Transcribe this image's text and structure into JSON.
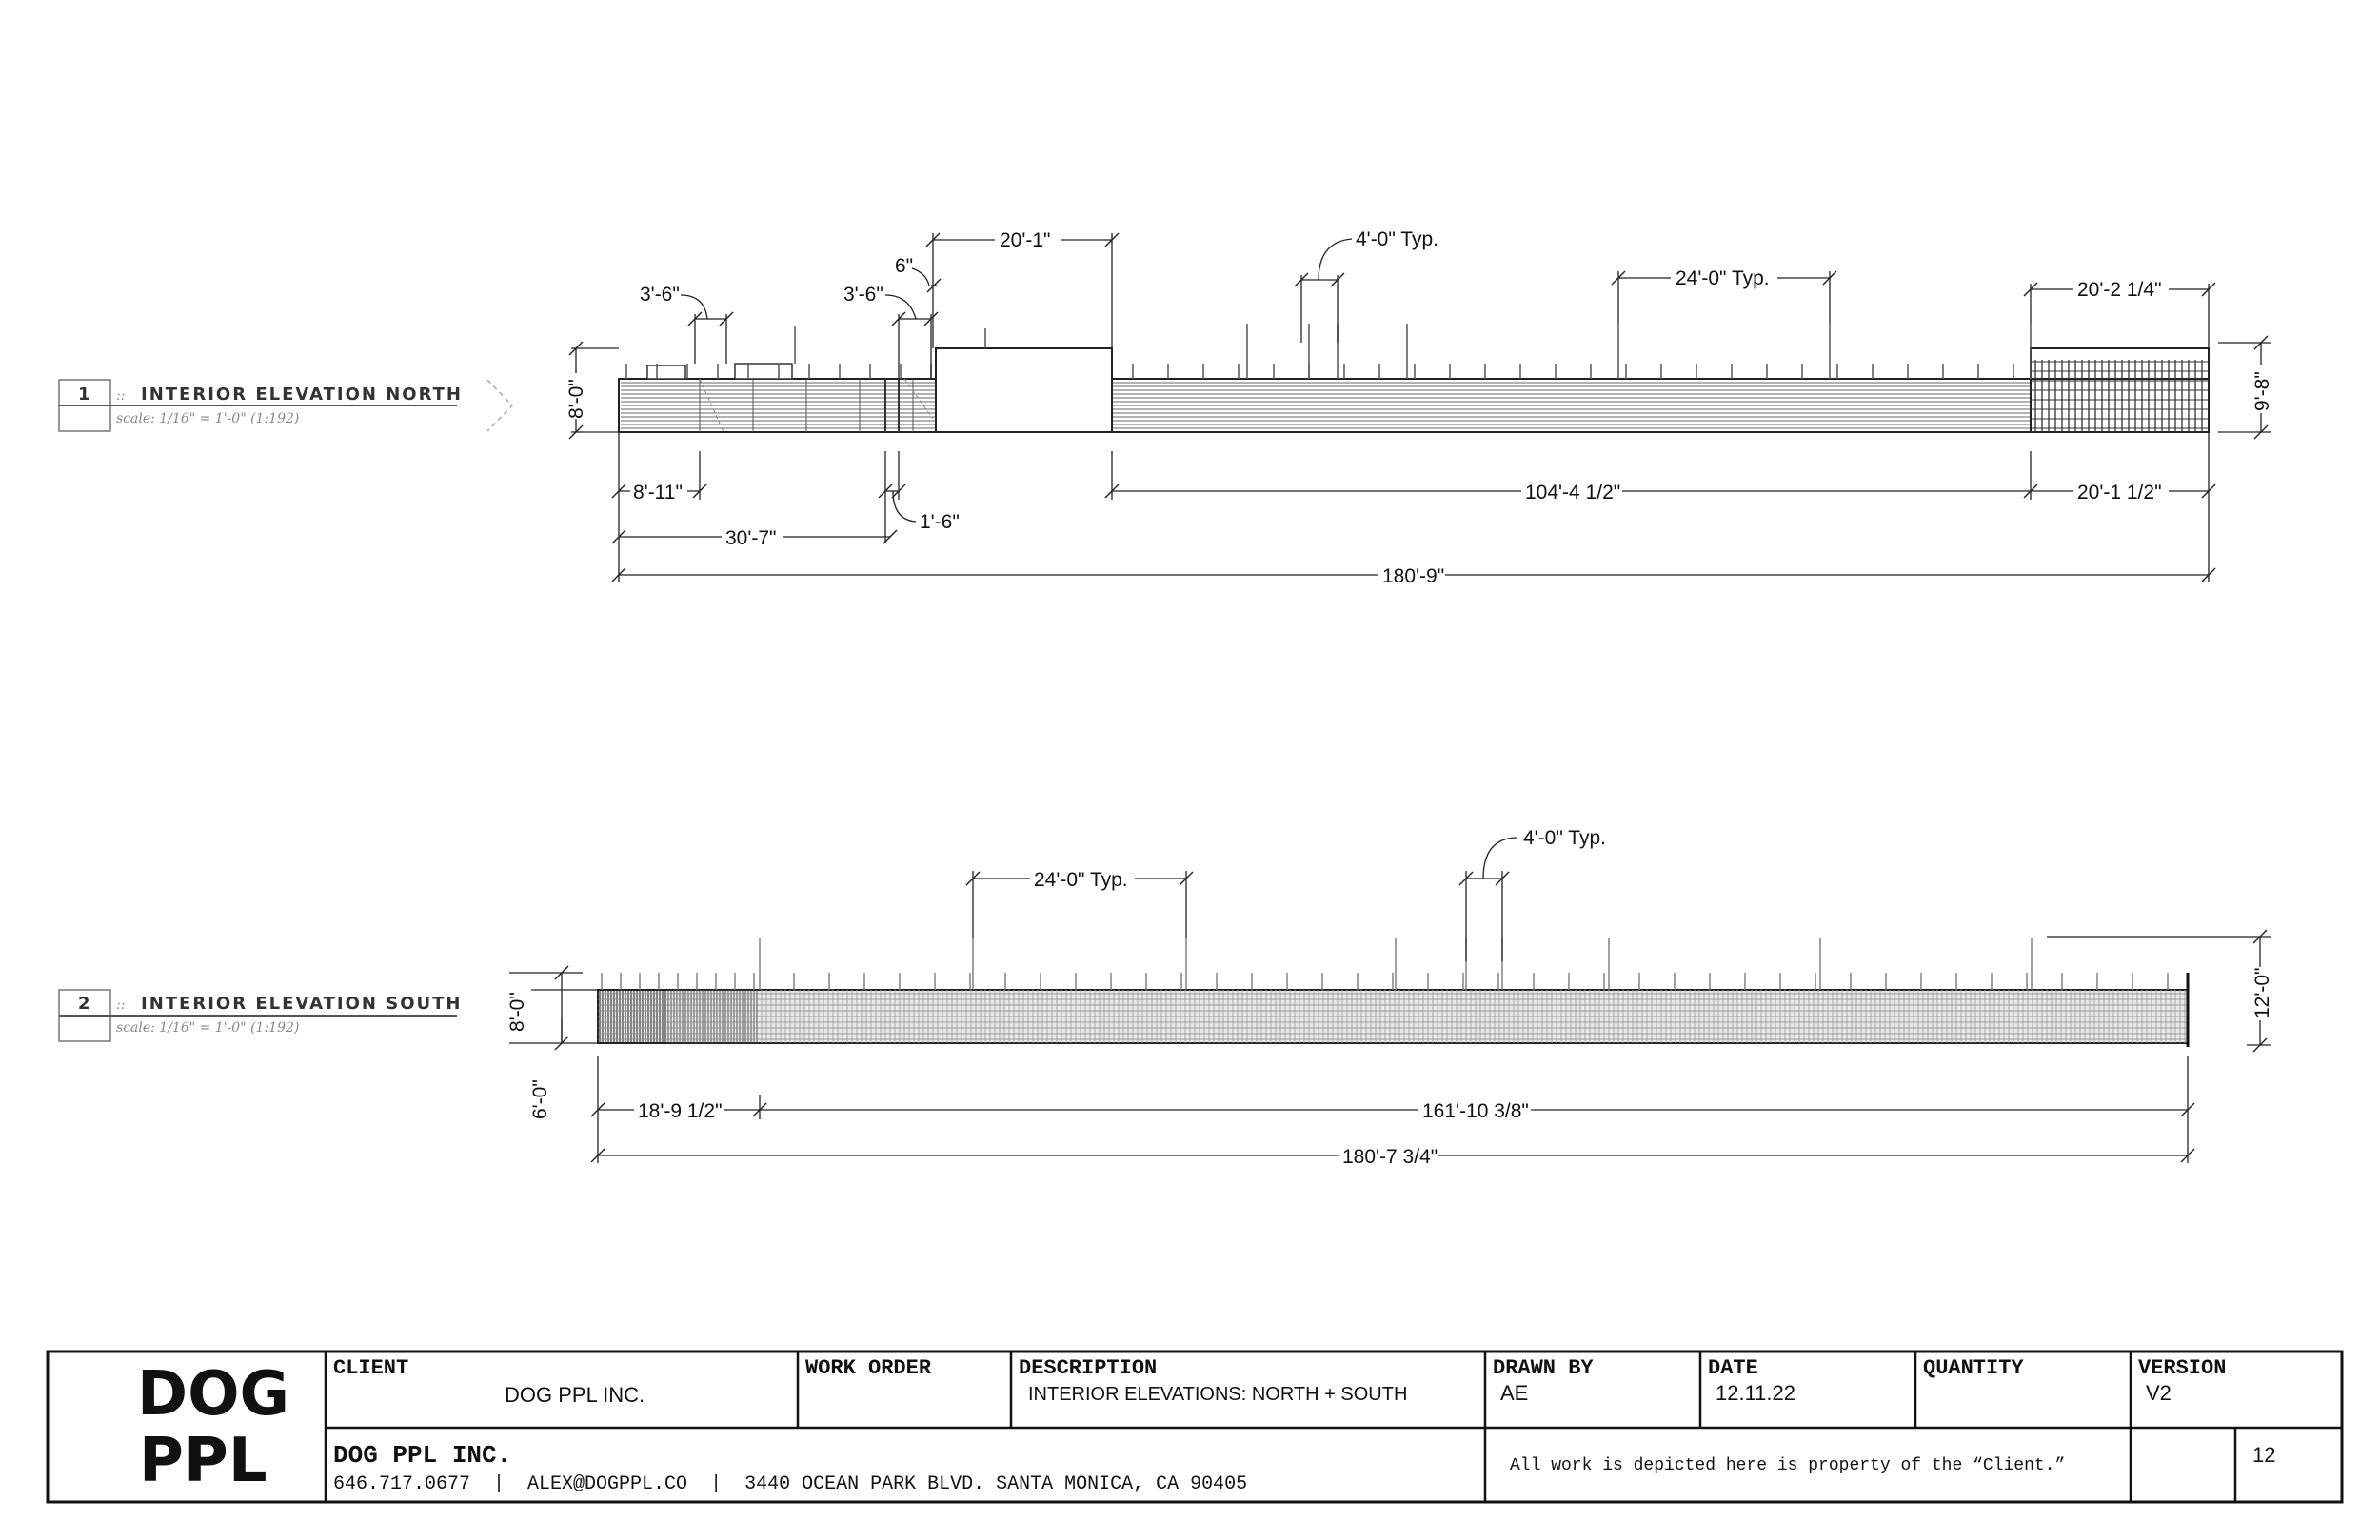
{
  "elevations": {
    "north": {
      "number": "1",
      "separator": "::",
      "title": "INTERIOR ELEVATION NORTH",
      "scale": "scale: 1/16\" = 1'-0\" (1:192)",
      "dims": {
        "d_20_1": "20'-1\"",
        "d_6": "6\"",
        "d_3_6_a": "3'-6\"",
        "d_3_6_b": "3'-6\"",
        "d_4_0_typ": "4'-0\" Typ.",
        "d_24_0_typ": "24'-0\" Typ.",
        "d_20_2_1_4": "20'-2 1/4\"",
        "d_8_0": "8'-0\"",
        "d_9_8": "9'-8\"",
        "d_8_11": "8'-11\"",
        "d_1_6": "1'-6\"",
        "d_104_4_1_2": "104'-4 1/2\"",
        "d_20_1_1_2": "20'-1 1/2\"",
        "d_30_7": "30'-7\"",
        "d_180_9": "180'-9\""
      }
    },
    "south": {
      "number": "2",
      "separator": "::",
      "title": "INTERIOR ELEVATION SOUTH",
      "scale": "scale: 1/16\" = 1'-0\" (1:192)",
      "dims": {
        "d_4_0_typ": "4'-0\" Typ.",
        "d_24_0_typ": "24'-0\" Typ.",
        "d_8_0": "8'-0\"",
        "d_6_0": "6'-0\"",
        "d_12_0": "12'-0\"",
        "d_18_9_1_2": "18'-9 1/2\"",
        "d_161_10_3_8": "161'-10 3/8\"",
        "d_180_7_3_4": "180'-7 3/4\""
      }
    }
  },
  "title_block": {
    "logo_line1": "DOG",
    "logo_line2": "PPL",
    "client_label": "CLIENT",
    "client_value": "DOG PPL INC.",
    "work_order_label": "WORK ORDER",
    "description_label": "DESCRIPTION",
    "description_value": "INTERIOR ELEVATIONS: NORTH + SOUTH",
    "drawn_by_label": "DRAWN BY",
    "drawn_by_value": "AE",
    "date_label": "DATE",
    "date_value": "12.11.22",
    "quantity_label": "QUANTITY",
    "version_label": "VERSION",
    "version_value": "V2",
    "company_name": "DOG PPL INC.",
    "company_contact": "646.717.0677  |  ALEX@DOGPPL.CO  |  3440 OCEAN PARK BLVD. SANTA MONICA, CA 90405",
    "disclaimer": "All work is depicted here is property of the “Client.”",
    "sheet_number": "12"
  }
}
